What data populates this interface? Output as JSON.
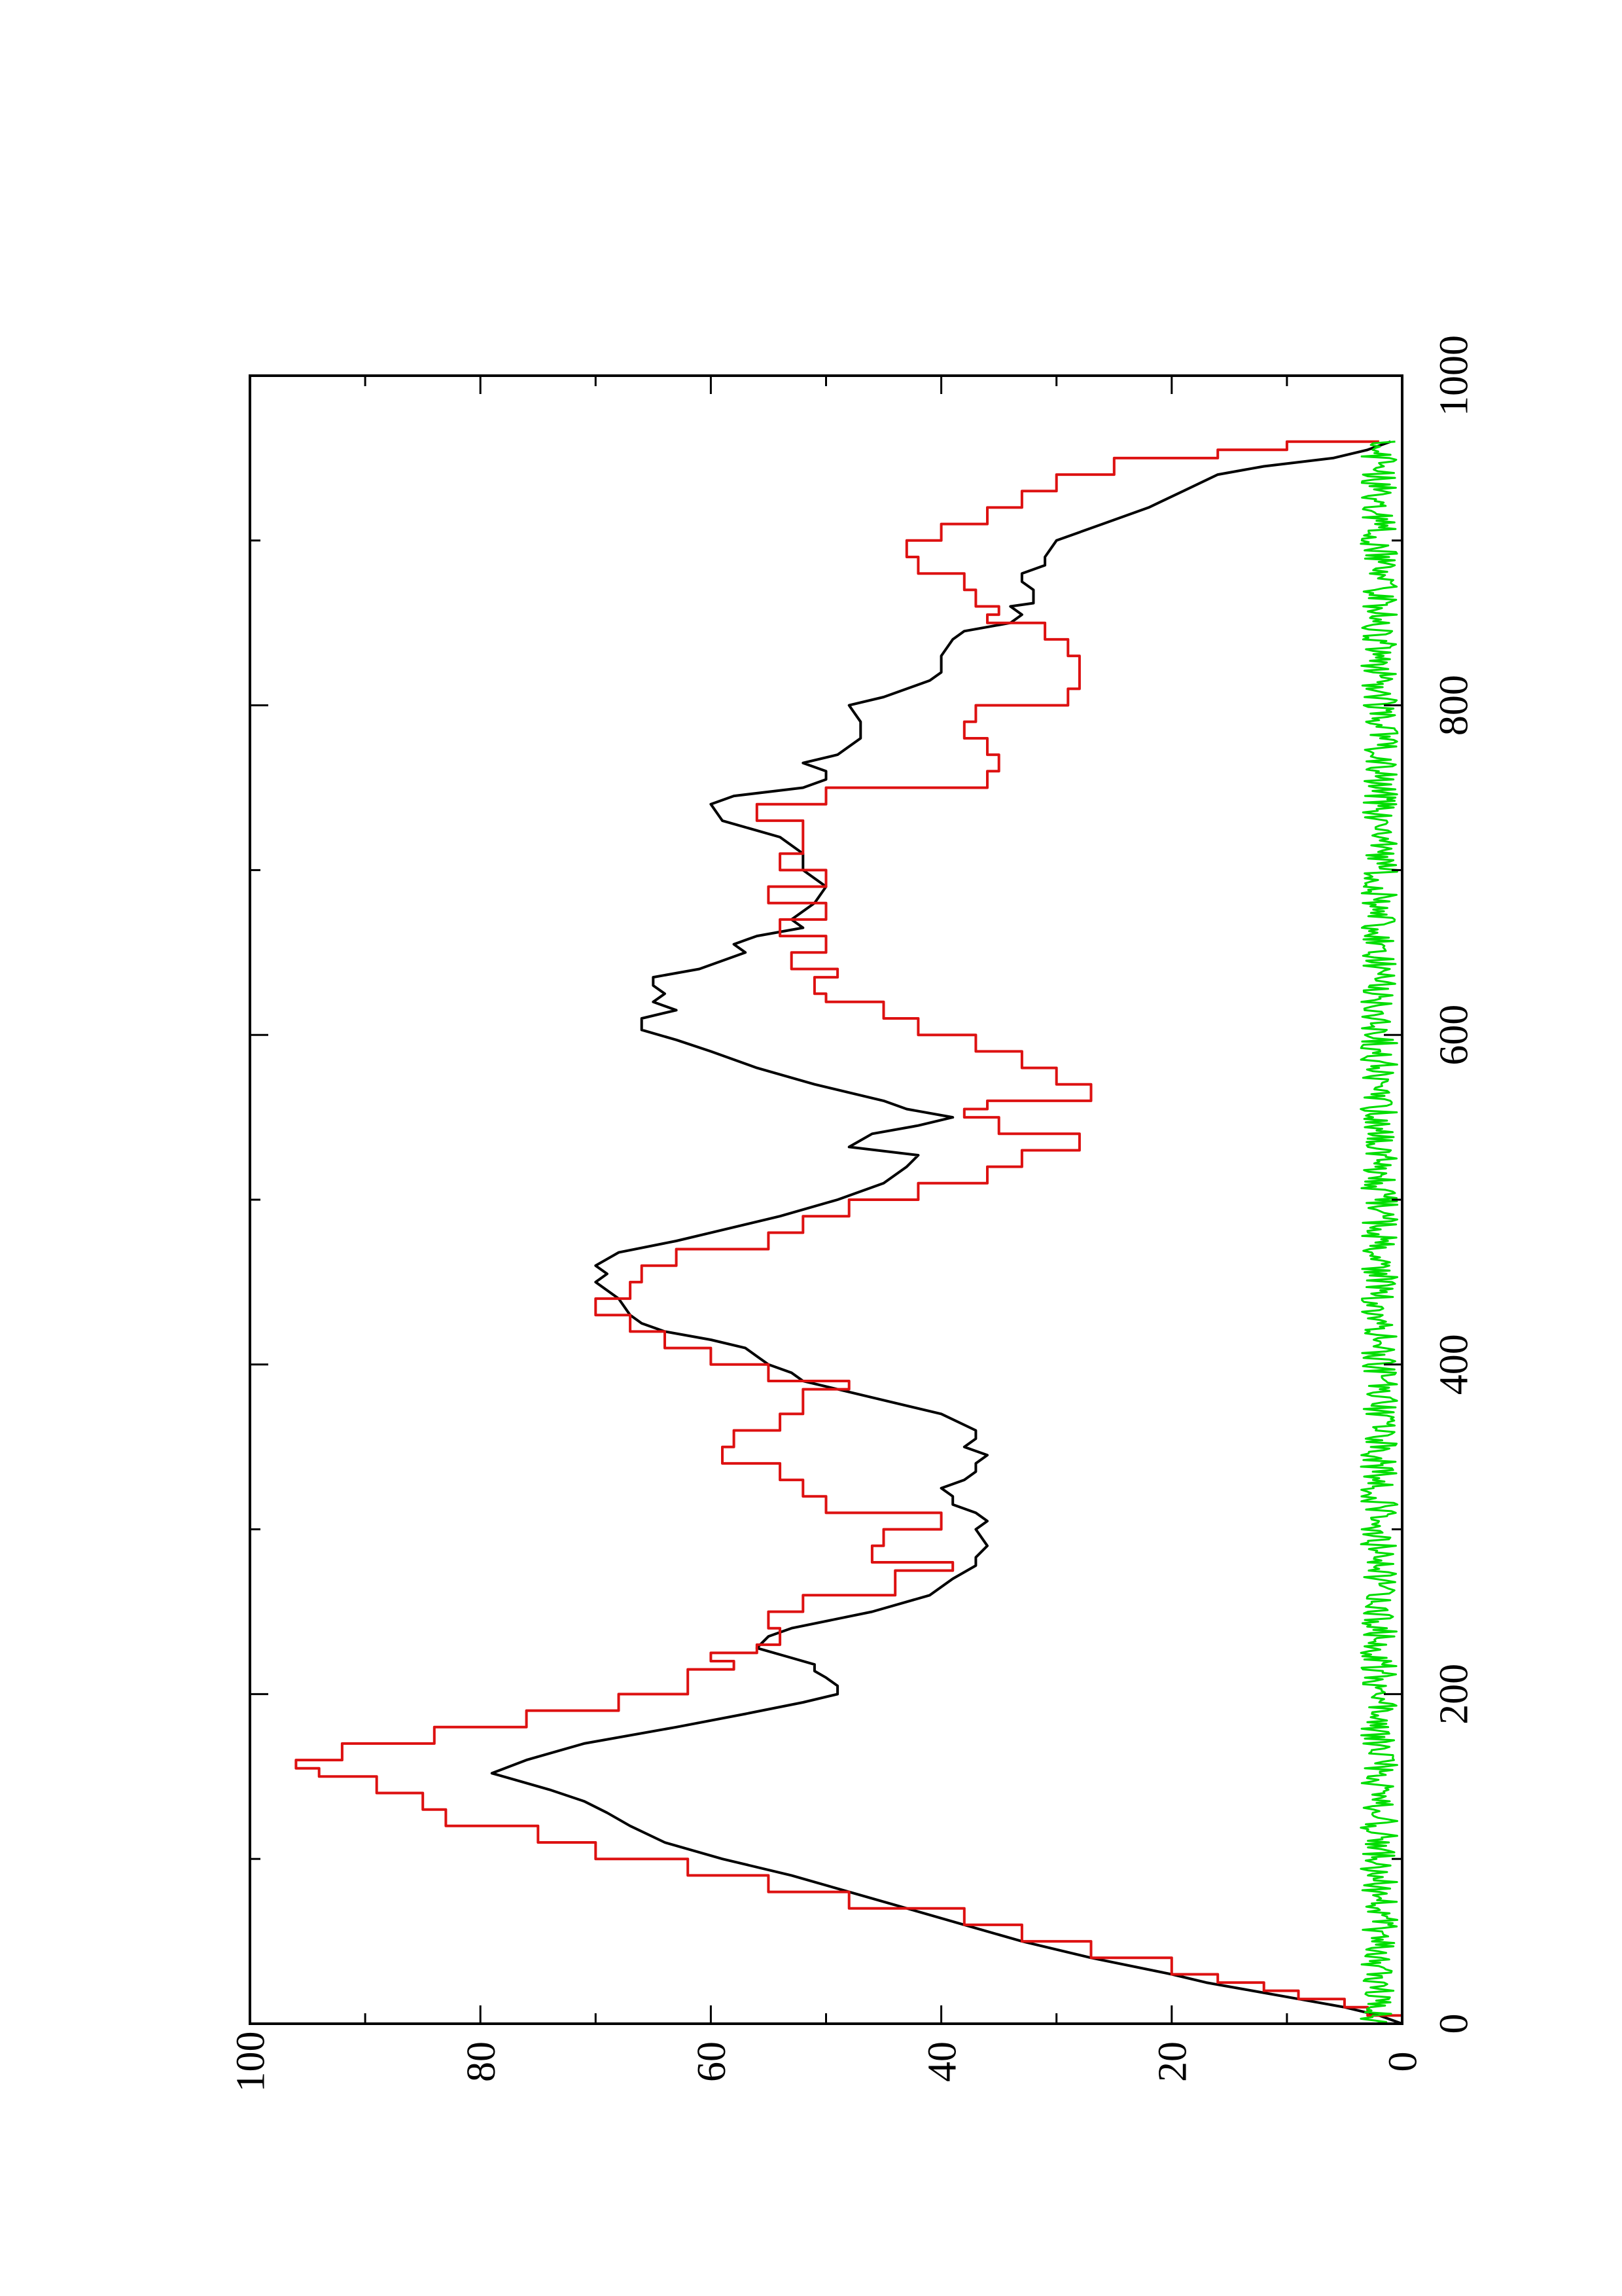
{
  "chart_data": {
    "type": "line",
    "orientation": "rotated-90-ccw",
    "title": "",
    "xlabel": "",
    "ylabel": "",
    "xlim": [
      0,
      1000
    ],
    "ylim": [
      0,
      100
    ],
    "x_major_ticks": [
      0,
      200,
      400,
      600,
      800,
      1000
    ],
    "x_tick_labels": [
      "0",
      "200",
      "400",
      "600",
      "800",
      "1000"
    ],
    "x_minor_ticks": [
      100,
      300,
      500,
      700,
      900
    ],
    "y_major_ticks": [
      0,
      20,
      40,
      60,
      80,
      100
    ],
    "y_tick_labels": [
      "0",
      "20",
      "40",
      "60",
      "80",
      "100"
    ],
    "y_minor_ticks": [
      10,
      30,
      50,
      70,
      90
    ],
    "grid": false,
    "legend": "none",
    "series": [
      {
        "color": "#000000",
        "style": "line",
        "x": [
          0,
          5,
          10,
          15,
          20,
          25,
          30,
          40,
          50,
          60,
          70,
          80,
          90,
          100,
          110,
          120,
          128,
          135,
          142,
          148,
          152,
          160,
          170,
          180,
          188,
          195,
          200,
          205,
          210,
          214,
          218,
          222,
          228,
          235,
          240,
          250,
          260,
          270,
          278,
          283,
          290,
          300,
          305,
          310,
          315,
          320,
          325,
          330,
          335,
          340,
          345,
          350,
          355,
          360,
          370,
          380,
          385,
          390,
          395,
          400,
          405,
          410,
          415,
          420,
          425,
          430,
          440,
          450,
          455,
          460,
          468,
          475,
          480,
          490,
          500,
          510,
          520,
          527,
          532,
          540,
          545,
          550,
          555,
          560,
          570,
          580,
          590,
          597,
          603,
          610,
          615,
          620,
          625,
          630,
          635,
          640,
          645,
          650,
          655,
          660,
          665,
          670,
          680,
          690,
          700,
          710,
          720,
          730,
          740,
          745,
          750,
          755,
          760,
          765,
          770,
          780,
          790,
          800,
          805,
          810,
          815,
          820,
          830,
          840,
          845,
          850,
          855,
          860,
          862,
          870,
          875,
          880,
          885,
          890,
          900,
          910,
          920,
          930,
          940,
          945,
          950,
          955,
          960
        ],
        "y": [
          0,
          2,
          5,
          9,
          13,
          17,
          20,
          27,
          33,
          38,
          43,
          48,
          53,
          59,
          64,
          67,
          69,
          71,
          74,
          77,
          79,
          76,
          71,
          63,
          57,
          52,
          49,
          49,
          50,
          51,
          51,
          53,
          56,
          55,
          53,
          46,
          41,
          39,
          37,
          37,
          36,
          37,
          36,
          37,
          39,
          39,
          40,
          38,
          37,
          37,
          36,
          38,
          37,
          37,
          40,
          46,
          49,
          52,
          53,
          55,
          56,
          57,
          60,
          64,
          66,
          67,
          68,
          70,
          69,
          70,
          68,
          63,
          60,
          54,
          49,
          45,
          43,
          42,
          48,
          46,
          42,
          39,
          43,
          45,
          51,
          56,
          60,
          63,
          66,
          66,
          63,
          65,
          64,
          65,
          65,
          61,
          59,
          57,
          58,
          56,
          52,
          53,
          51,
          50,
          52,
          52,
          54,
          59,
          60,
          58,
          52,
          50,
          50,
          52,
          49,
          47,
          47,
          48,
          45,
          43,
          41,
          40,
          40,
          39,
          38,
          34,
          33,
          34,
          32,
          32,
          33,
          33,
          31,
          31,
          30,
          26,
          22,
          19,
          16,
          12,
          6,
          3,
          1
        ]
      },
      {
        "color": "#dd1111",
        "style": "step",
        "x": [
          0,
          5,
          10,
          15,
          20,
          25,
          30,
          40,
          50,
          60,
          70,
          80,
          90,
          100,
          110,
          120,
          130,
          140,
          150,
          155,
          160,
          170,
          180,
          190,
          200,
          210,
          215,
          220,
          225,
          230,
          240,
          250,
          260,
          270,
          275,
          280,
          290,
          300,
          310,
          320,
          330,
          340,
          350,
          360,
          370,
          385,
          390,
          400,
          410,
          420,
          430,
          440,
          450,
          460,
          470,
          480,
          490,
          500,
          510,
          520,
          530,
          540,
          550,
          555,
          560,
          570,
          580,
          590,
          600,
          610,
          620,
          625,
          635,
          640,
          650,
          660,
          670,
          680,
          690,
          700,
          710,
          720,
          730,
          740,
          750,
          760,
          770,
          780,
          790,
          800,
          810,
          820,
          830,
          840,
          850,
          855,
          860,
          870,
          880,
          890,
          900,
          910,
          920,
          930,
          940,
          950,
          955,
          960
        ],
        "y": [
          0,
          3,
          5,
          9,
          12,
          16,
          20,
          27,
          33,
          38,
          48,
          55,
          62,
          70,
          75,
          83,
          85,
          89,
          94,
          96,
          92,
          84,
          76,
          68,
          62,
          62,
          58,
          60,
          56,
          54,
          55,
          52,
          44,
          44,
          39,
          46,
          45,
          40,
          50,
          52,
          54,
          59,
          58,
          54,
          52,
          48,
          55,
          60,
          64,
          67,
          70,
          67,
          66,
          63,
          55,
          52,
          48,
          42,
          36,
          33,
          28,
          35,
          38,
          36,
          27,
          30,
          33,
          37,
          42,
          45,
          50,
          51,
          49,
          53,
          50,
          54,
          50,
          55,
          50,
          54,
          52,
          52,
          56,
          50,
          36,
          35,
          36,
          38,
          37,
          29,
          28,
          28,
          29,
          31,
          36,
          35,
          37,
          38,
          42,
          43,
          40,
          36,
          33,
          30,
          25,
          16,
          10,
          2
        ]
      },
      {
        "color": "#00dd00",
        "style": "noise",
        "x": [
          0,
          960
        ],
        "y_range": [
          0,
          4
        ],
        "y_mean": 1.5
      }
    ]
  }
}
